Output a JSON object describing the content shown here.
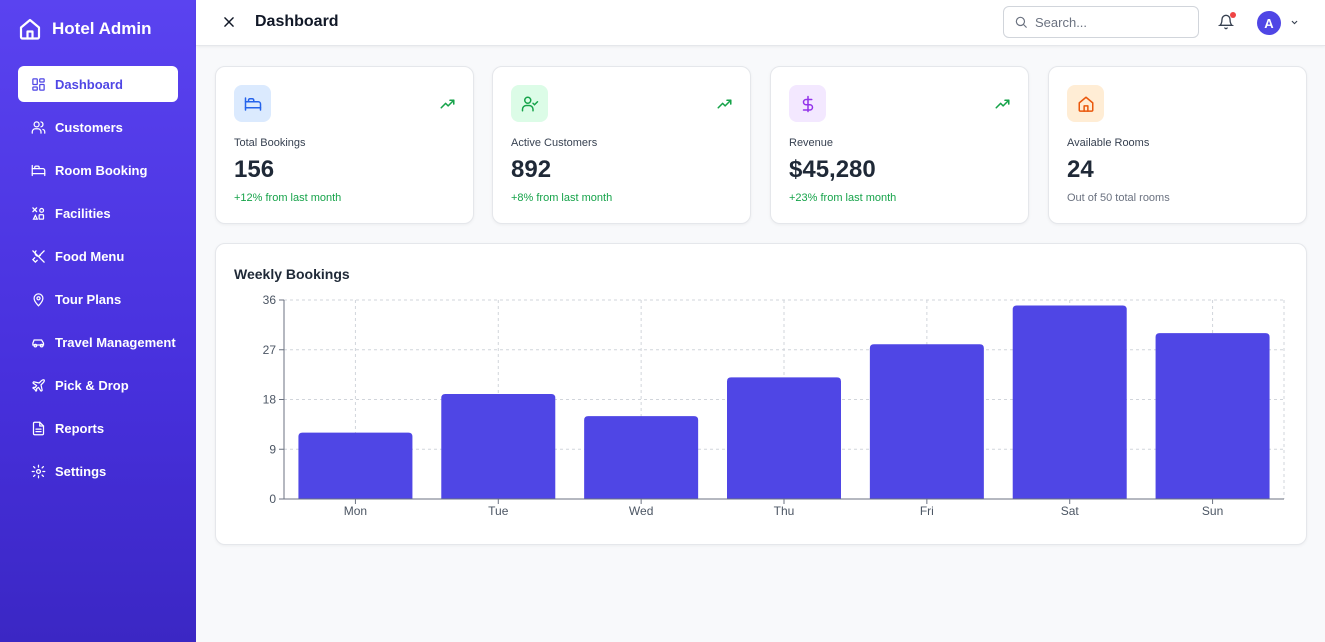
{
  "sidebar": {
    "brand": "Hotel Admin",
    "items": [
      {
        "label": "Dashboard",
        "icon": "dashboard-grid-icon",
        "active": true
      },
      {
        "label": "Customers",
        "icon": "users-icon"
      },
      {
        "label": "Room Booking",
        "icon": "bed-icon"
      },
      {
        "label": "Facilities",
        "icon": "shapes-icon"
      },
      {
        "label": "Food Menu",
        "icon": "utensils-icon"
      },
      {
        "label": "Tour Plans",
        "icon": "map-pin-icon"
      },
      {
        "label": "Travel Management",
        "icon": "car-icon"
      },
      {
        "label": "Pick & Drop",
        "icon": "plane-icon"
      },
      {
        "label": "Reports",
        "icon": "file-text-icon"
      },
      {
        "label": "Settings",
        "icon": "gear-icon"
      }
    ]
  },
  "header": {
    "title": "Dashboard",
    "search_placeholder": "Search...",
    "avatar_initial": "A"
  },
  "stats": [
    {
      "label": "Total Bookings",
      "value": "156",
      "sub": "+12% from last month",
      "icon": "bed-icon",
      "icon_bg": "#dbeafe",
      "icon_color": "#2563eb",
      "trend": true,
      "sub_color": "green"
    },
    {
      "label": "Active Customers",
      "value": "892",
      "sub": "+8% from last month",
      "icon": "user-check-icon",
      "icon_bg": "#dcfce7",
      "icon_color": "#16a34a",
      "trend": true,
      "sub_color": "green"
    },
    {
      "label": "Revenue",
      "value": "$45,280",
      "sub": "+23% from last month",
      "icon": "dollar-icon",
      "icon_bg": "#f3e8ff",
      "icon_color": "#9333ea",
      "trend": true,
      "sub_color": "green"
    },
    {
      "label": "Available Rooms",
      "value": "24",
      "sub": "Out of 50 total rooms",
      "icon": "home-icon",
      "icon_bg": "#ffedd5",
      "icon_color": "#ea580c",
      "trend": false,
      "sub_color": "gray"
    }
  ],
  "chart_data": {
    "type": "bar",
    "title": "Weekly Bookings",
    "categories": [
      "Mon",
      "Tue",
      "Wed",
      "Thu",
      "Fri",
      "Sat",
      "Sun"
    ],
    "values": [
      12,
      19,
      15,
      22,
      28,
      35,
      30
    ],
    "ylim": [
      0,
      36
    ],
    "yticks": [
      0,
      9,
      18,
      27,
      36
    ],
    "grid": true,
    "color": "#4f46e5"
  }
}
